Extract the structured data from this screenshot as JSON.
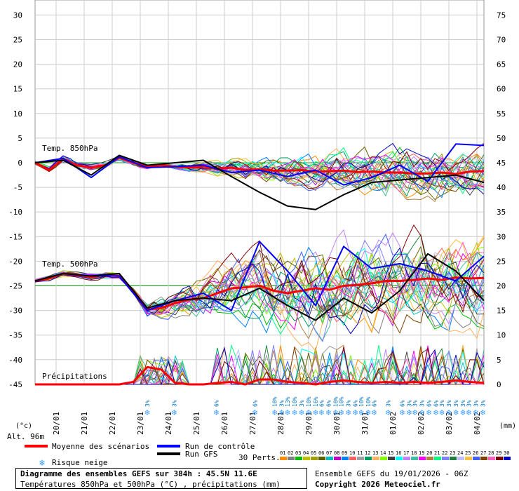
{
  "chart_data": {
    "type": "line",
    "x_ticks": [
      "20/01",
      "21/01",
      "22/01",
      "23/01",
      "24/01",
      "25/01",
      "26/01",
      "27/01",
      "28/01",
      "29/01",
      "30/01",
      "31/01",
      "01/02",
      "02/02",
      "03/02",
      "04/02"
    ],
    "x_range": [
      "19/01/2026 06Z",
      "04/02/2026 18Z"
    ],
    "y_left_ticks": [
      30,
      25,
      20,
      15,
      10,
      5,
      0,
      -5,
      -10,
      -15,
      -20,
      -25,
      -30,
      -35,
      -40,
      -45
    ],
    "y_left_range": [
      -45,
      32
    ],
    "y_left_unit": "(°c)",
    "y_right_ticks": [
      75,
      70,
      65,
      60,
      55,
      50,
      45,
      40,
      35,
      30,
      25,
      20,
      15,
      10,
      5,
      0
    ],
    "y_right_range": [
      0,
      77
    ],
    "y_right_unit": "(mm)",
    "grid": true,
    "panel_labels": {
      "t850": "Temp. 850hPa",
      "t500": "Temp. 500hPa",
      "precip": "Précipitations"
    },
    "altitude": "Alt. 96m",
    "series": [
      {
        "name": "Moyenne des scénarios",
        "color": "#ff0000",
        "group": "t850",
        "time_h": [
          0,
          12,
          24,
          36,
          48,
          60,
          72,
          84,
          96,
          108,
          120,
          132,
          144,
          156,
          168,
          180,
          192,
          204,
          216,
          228,
          240,
          252,
          264,
          276,
          288,
          300,
          312,
          324,
          336,
          348,
          360,
          372,
          384
        ],
        "values": [
          0,
          -1.5,
          0.8,
          -0.5,
          -1,
          -0.5,
          1,
          0,
          -0.8,
          -0.5,
          -0.8,
          -1,
          -0.8,
          -1.2,
          -1,
          -1.5,
          -1.3,
          -1.6,
          -1.6,
          -1.5,
          -1.8,
          -1.7,
          -1.6,
          -1.9,
          -1.8,
          -2,
          -2,
          -2.2,
          -2.2,
          -2,
          -2.3,
          -1.8,
          -1.7
        ]
      },
      {
        "name": "Run de contrôle",
        "color": "#0000ff",
        "group": "t850",
        "time_h": [
          0,
          24,
          48,
          72,
          96,
          120,
          144,
          168,
          192,
          216,
          240,
          264,
          288,
          312,
          336,
          360,
          384
        ],
        "values": [
          0,
          0.9,
          -3,
          1.2,
          -1,
          -0.8,
          -0.5,
          -2,
          -1.5,
          -2.8,
          -1.5,
          -4.5,
          -3,
          -0.5,
          -3.8,
          3.8,
          3.5
        ]
      },
      {
        "name": "Run GFS",
        "color": "#000000",
        "group": "t850",
        "time_h": [
          0,
          24,
          48,
          72,
          96,
          120,
          144,
          168,
          192,
          216,
          240,
          264,
          288,
          312,
          336,
          360,
          384
        ],
        "values": [
          0,
          0.5,
          -2.5,
          1.5,
          -0.5,
          0,
          0.5,
          -2.8,
          -6,
          -8.8,
          -9.5,
          -6.5,
          -4,
          -3.5,
          -3,
          -2.5,
          -4
        ]
      },
      {
        "name": "Moyenne des scénarios",
        "color": "#ff0000",
        "group": "t500",
        "time_h": [
          0,
          12,
          24,
          36,
          48,
          60,
          72,
          84,
          96,
          108,
          120,
          132,
          144,
          156,
          168,
          180,
          192,
          204,
          216,
          228,
          240,
          252,
          264,
          276,
          288,
          300,
          312,
          324,
          336,
          348,
          360,
          372,
          384
        ],
        "values": [
          -24,
          -23.5,
          -22.5,
          -22.8,
          -23.2,
          -22.8,
          -23,
          -26,
          -29.8,
          -29.5,
          -28.5,
          -27.8,
          -27.5,
          -26.5,
          -25.5,
          -25.3,
          -25,
          -26,
          -26.5,
          -26,
          -25.5,
          -25.8,
          -25,
          -24.8,
          -24.5,
          -24,
          -24,
          -23.8,
          -23.5,
          -23.8,
          -23.3,
          -23.5,
          -23.4
        ]
      },
      {
        "name": "Run de contrôle",
        "color": "#0000ff",
        "group": "t500",
        "time_h": [
          0,
          24,
          48,
          72,
          96,
          120,
          144,
          168,
          192,
          216,
          240,
          264,
          288,
          312,
          336,
          360,
          384
        ],
        "values": [
          -24,
          -22.5,
          -23,
          -23,
          -30,
          -28,
          -26.5,
          -30,
          -16,
          -22,
          -29,
          -17,
          -21.5,
          -20.5,
          -22,
          -24,
          -19
        ]
      },
      {
        "name": "Run GFS",
        "color": "#000000",
        "group": "t500",
        "time_h": [
          0,
          24,
          48,
          72,
          96,
          120,
          144,
          168,
          192,
          216,
          240,
          264,
          288,
          312,
          336,
          360,
          384
        ],
        "values": [
          -24,
          -22.5,
          -23,
          -22.5,
          -29.5,
          -28,
          -27.5,
          -28,
          -25.5,
          -29,
          -32,
          -27.5,
          -30.5,
          -26,
          -18.5,
          -22,
          -28
        ]
      },
      {
        "name": "Moyenne des scénarios",
        "color": "#ff0000",
        "group": "precip",
        "time_h": [
          0,
          12,
          24,
          36,
          48,
          60,
          72,
          84,
          96,
          108,
          120,
          132,
          144,
          156,
          168,
          180,
          192,
          204,
          216,
          228,
          240,
          252,
          264,
          276,
          288,
          300,
          312,
          324,
          336,
          348,
          360,
          372,
          384
        ],
        "values": [
          0,
          0,
          0,
          0,
          0,
          0,
          0,
          0.5,
          3.5,
          3,
          0.3,
          0,
          0,
          0.3,
          0.5,
          0,
          1,
          1,
          0.5,
          0.3,
          0,
          0.5,
          0.8,
          0.5,
          0.3,
          0.5,
          0.3,
          0.5,
          0.3,
          0.5,
          0.8,
          0.5,
          0.3
        ]
      }
    ],
    "snow_risk_labels": [
      {
        "time_h": 96,
        "text": "3%"
      },
      {
        "time_h": 119,
        "text": "3%"
      },
      {
        "time_h": 155,
        "text": "6%"
      },
      {
        "time_h": 188,
        "text": "6%"
      },
      {
        "time_h": 205,
        "text": "10%"
      },
      {
        "time_h": 211,
        "text": "3%"
      },
      {
        "time_h": 216,
        "text": "13%"
      },
      {
        "time_h": 222,
        "text": "10%"
      },
      {
        "time_h": 228,
        "text": "3%"
      },
      {
        "time_h": 234,
        "text": "10%"
      },
      {
        "time_h": 240,
        "text": "16%"
      },
      {
        "time_h": 245,
        "text": "6%"
      },
      {
        "time_h": 251,
        "text": "6%"
      },
      {
        "time_h": 257,
        "text": "10%"
      },
      {
        "time_h": 262,
        "text": "10%"
      },
      {
        "time_h": 268,
        "text": "3%"
      },
      {
        "time_h": 274,
        "text": "6%"
      },
      {
        "time_h": 279,
        "text": "10%"
      },
      {
        "time_h": 285,
        "text": "10%"
      },
      {
        "time_h": 290,
        "text": "6%"
      },
      {
        "time_h": 302,
        "text": "3%"
      },
      {
        "time_h": 314,
        "text": "6%"
      },
      {
        "time_h": 320,
        "text": "3%"
      },
      {
        "time_h": 325,
        "text": "3%"
      },
      {
        "time_h": 331,
        "text": "3%"
      },
      {
        "time_h": 337,
        "text": "6%"
      },
      {
        "time_h": 343,
        "text": "6%"
      },
      {
        "time_h": 348,
        "text": "3%"
      },
      {
        "time_h": 354,
        "text": "3%"
      },
      {
        "time_h": 360,
        "text": "3%"
      },
      {
        "time_h": 366,
        "text": "3%"
      },
      {
        "time_h": 371,
        "text": "3%"
      },
      {
        "time_h": 377,
        "text": "3%"
      },
      {
        "time_h": 383,
        "text": "3%"
      }
    ],
    "legend": {
      "mean": "Moyenne des scénarios",
      "control": "Run de contrôle",
      "gfs": "Run GFS",
      "snow": "Risque neige",
      "perts": "30 Perts.",
      "members": [
        "01",
        "02",
        "03",
        "04",
        "05",
        "06",
        "07",
        "08",
        "09",
        "10",
        "11",
        "12",
        "13",
        "14",
        "15",
        "16",
        "17",
        "18",
        "19",
        "20",
        "21",
        "22",
        "23",
        "24",
        "25",
        "26",
        "27",
        "28",
        "29",
        "30"
      ],
      "member_colors": [
        "#ff8c00",
        "#808080",
        "#00c000",
        "#c0c000",
        "#a0a000",
        "#606000",
        "#00c0c0",
        "#c000c0",
        "#0080ff",
        "#ff6060",
        "#a0a0a0",
        "#00a060",
        "#ffb060",
        "#80ff00",
        "#404040",
        "#00ffff",
        "#c080ff",
        "#40c0a0",
        "#ff00ff",
        "#b08040",
        "#00ff80",
        "#8080ff",
        "#208040",
        "#c0c0ff",
        "#ffc040",
        "#4060ff",
        "#804000",
        "#ff60c0",
        "#800000",
        "#0000c0"
      ]
    }
  },
  "footer": {
    "title": "Diagramme des ensembles GEFS sur 384h : 45.5N 11.6E",
    "subtitle": "Températures 850hPa et 500hPa (°C) , précipitations (mm)",
    "ensemble": "Ensemble GEFS du 19/01/2026 - 06Z",
    "copyright": "Copyright 2026 Meteociel.fr"
  }
}
